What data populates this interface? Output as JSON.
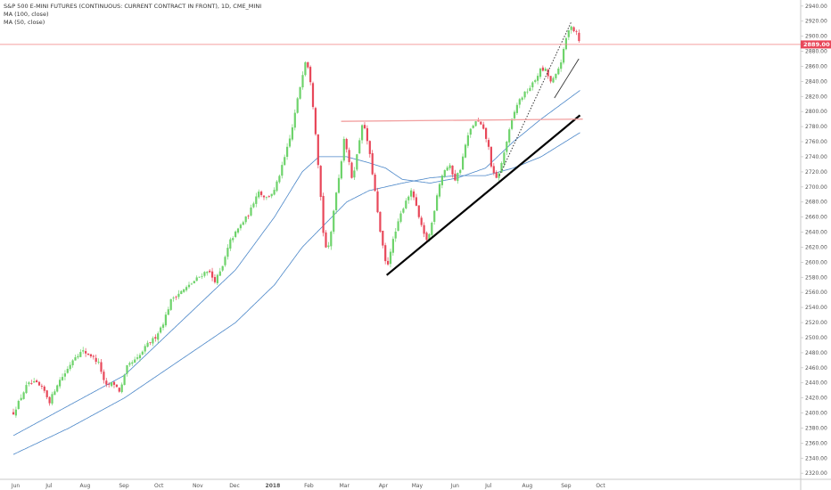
{
  "legend": {
    "title": "S&P 500 E-MINI FUTURES (CONTINUOUS: CURRENT CONTRACT IN FRONT), 1D, CME_MINI",
    "ma100": "MA (100, close)",
    "ma50": "MA (50, close)"
  },
  "colors": {
    "up": "#6ed36b",
    "down": "#e8485a",
    "ma": "#4a86c8",
    "trend": "#000000",
    "resistance": "#f2a0a0",
    "price_line": "#f08080",
    "price_tag": "#e8485a"
  },
  "chart_data": {
    "type": "candlestick",
    "title": "S&P 500 E-MINI FUTURES (CONTINUOUS: CURRENT CONTRACT IN FRONT), 1D, CME_MINI",
    "y_ticks": [
      "2940.00",
      "2920.00",
      "2900.00",
      "2880.00",
      "2860.00",
      "2840.00",
      "2820.00",
      "2800.00",
      "2780.00",
      "2760.00",
      "2740.00",
      "2720.00",
      "2700.00",
      "2680.00",
      "2660.00",
      "2640.00",
      "2620.00",
      "2600.00",
      "2580.00",
      "2560.00",
      "2540.00",
      "2520.00",
      "2500.00",
      "2480.00",
      "2460.00",
      "2440.00",
      "2420.00",
      "2400.00",
      "2380.00",
      "2360.00",
      "2340.00",
      "2320.00"
    ],
    "ylim": [
      2312,
      2948
    ],
    "x_labels": [
      {
        "label": "Jun",
        "t": 0.04
      },
      {
        "label": "Jul",
        "t": 0.64
      },
      {
        "label": "Aug",
        "t": 1.29
      },
      {
        "label": "Sep",
        "t": 1.99
      },
      {
        "label": "Oct",
        "t": 2.62
      },
      {
        "label": "Nov",
        "t": 3.32
      },
      {
        "label": "Dec",
        "t": 3.98
      },
      {
        "label": "2018",
        "t": 4.67,
        "bold": true
      },
      {
        "label": "Feb",
        "t": 5.32
      },
      {
        "label": "Mar",
        "t": 5.96
      },
      {
        "label": "Apr",
        "t": 6.66
      },
      {
        "label": "May",
        "t": 7.27
      },
      {
        "label": "Jun",
        "t": 7.95
      },
      {
        "label": "Jul",
        "t": 8.55
      },
      {
        "label": "Aug",
        "t": 9.25
      },
      {
        "label": "Sep",
        "t": 9.95
      },
      {
        "label": "Oct",
        "t": 10.57
      }
    ],
    "current_price": "2889.00",
    "current_value": 2889,
    "anchors": [
      [
        0.0,
        2400
      ],
      [
        0.1,
        2415
      ],
      [
        0.25,
        2438
      ],
      [
        0.4,
        2440
      ],
      [
        0.55,
        2430
      ],
      [
        0.65,
        2415
      ],
      [
        0.8,
        2440
      ],
      [
        0.95,
        2455
      ],
      [
        1.1,
        2475
      ],
      [
        1.25,
        2482
      ],
      [
        1.4,
        2476
      ],
      [
        1.55,
        2465
      ],
      [
        1.65,
        2435
      ],
      [
        1.8,
        2440
      ],
      [
        1.92,
        2428
      ],
      [
        2.05,
        2462
      ],
      [
        2.25,
        2473
      ],
      [
        2.4,
        2490
      ],
      [
        2.55,
        2500
      ],
      [
        2.7,
        2520
      ],
      [
        2.85,
        2552
      ],
      [
        3.0,
        2560
      ],
      [
        3.15,
        2568
      ],
      [
        3.3,
        2578
      ],
      [
        3.5,
        2590
      ],
      [
        3.62,
        2575
      ],
      [
        3.75,
        2590
      ],
      [
        3.9,
        2628
      ],
      [
        4.1,
        2650
      ],
      [
        4.25,
        2665
      ],
      [
        4.4,
        2695
      ],
      [
        4.55,
        2685
      ],
      [
        4.7,
        2695
      ],
      [
        4.85,
        2730
      ],
      [
        5.0,
        2770
      ],
      [
        5.1,
        2810
      ],
      [
        5.2,
        2848
      ],
      [
        5.27,
        2873
      ],
      [
        5.35,
        2840
      ],
      [
        5.42,
        2790
      ],
      [
        5.5,
        2720
      ],
      [
        5.58,
        2640
      ],
      [
        5.65,
        2610
      ],
      [
        5.72,
        2640
      ],
      [
        5.8,
        2690
      ],
      [
        5.88,
        2720
      ],
      [
        5.96,
        2770
      ],
      [
        6.02,
        2740
      ],
      [
        6.1,
        2710
      ],
      [
        6.18,
        2740
      ],
      [
        6.28,
        2785
      ],
      [
        6.35,
        2770
      ],
      [
        6.42,
        2740
      ],
      [
        6.5,
        2700
      ],
      [
        6.58,
        2650
      ],
      [
        6.65,
        2620
      ],
      [
        6.72,
        2590
      ],
      [
        6.8,
        2620
      ],
      [
        6.88,
        2640
      ],
      [
        6.98,
        2665
      ],
      [
        7.08,
        2685
      ],
      [
        7.18,
        2695
      ],
      [
        7.28,
        2665
      ],
      [
        7.38,
        2638
      ],
      [
        7.46,
        2628
      ],
      [
        7.55,
        2658
      ],
      [
        7.65,
        2700
      ],
      [
        7.75,
        2722
      ],
      [
        7.85,
        2728
      ],
      [
        7.95,
        2710
      ],
      [
        8.05,
        2725
      ],
      [
        8.15,
        2760
      ],
      [
        8.25,
        2780
      ],
      [
        8.35,
        2788
      ],
      [
        8.45,
        2778
      ],
      [
        8.55,
        2755
      ],
      [
        8.62,
        2720
      ],
      [
        8.7,
        2710
      ],
      [
        8.78,
        2728
      ],
      [
        8.88,
        2760
      ],
      [
        8.98,
        2790
      ],
      [
        9.08,
        2812
      ],
      [
        9.18,
        2822
      ],
      [
        9.28,
        2830
      ],
      [
        9.38,
        2840
      ],
      [
        9.48,
        2855
      ],
      [
        9.58,
        2855
      ],
      [
        9.68,
        2838
      ],
      [
        9.78,
        2850
      ],
      [
        9.88,
        2872
      ],
      [
        9.96,
        2900
      ],
      [
        10.04,
        2915
      ],
      [
        10.1,
        2907
      ],
      [
        10.16,
        2905
      ],
      [
        10.2,
        2889
      ]
    ],
    "ma50_anchors": [
      [
        0.0,
        2370
      ],
      [
        1.0,
        2410
      ],
      [
        2.0,
        2450
      ],
      [
        3.0,
        2520
      ],
      [
        4.0,
        2590
      ],
      [
        4.7,
        2660
      ],
      [
        5.2,
        2720
      ],
      [
        5.5,
        2740
      ],
      [
        6.0,
        2740
      ],
      [
        6.4,
        2732
      ],
      [
        6.7,
        2725
      ],
      [
        7.0,
        2710
      ],
      [
        7.5,
        2705
      ],
      [
        8.0,
        2712
      ],
      [
        8.5,
        2725
      ],
      [
        9.0,
        2760
      ],
      [
        9.5,
        2790
      ],
      [
        10.2,
        2828
      ]
    ],
    "ma100_anchors": [
      [
        0.0,
        2345
      ],
      [
        1.0,
        2380
      ],
      [
        2.0,
        2420
      ],
      [
        3.0,
        2470
      ],
      [
        4.0,
        2520
      ],
      [
        4.7,
        2570
      ],
      [
        5.2,
        2620
      ],
      [
        5.6,
        2650
      ],
      [
        6.0,
        2680
      ],
      [
        6.4,
        2695
      ],
      [
        7.0,
        2705
      ],
      [
        7.5,
        2712
      ],
      [
        8.0,
        2715
      ],
      [
        8.5,
        2715
      ],
      [
        9.0,
        2725
      ],
      [
        9.5,
        2740
      ],
      [
        10.2,
        2772
      ]
    ],
    "trendlines": [
      {
        "name": "support-trendline",
        "from": [
          6.72,
          2583
        ],
        "to": [
          10.2,
          2795
        ],
        "style": "thick"
      },
      {
        "name": "short-support-trendline",
        "from": [
          9.74,
          2818
        ],
        "to": [
          10.18,
          2870
        ],
        "style": "thin"
      },
      {
        "name": "dotted-trendline",
        "from": [
          8.75,
          2715
        ],
        "to": [
          10.05,
          2920
        ],
        "style": "dotted"
      },
      {
        "name": "resistance-line",
        "from": [
          5.9,
          2787
        ],
        "to": [
          10.25,
          2790
        ],
        "style": "pink"
      }
    ],
    "grid": false,
    "legend_position": "top-left"
  }
}
